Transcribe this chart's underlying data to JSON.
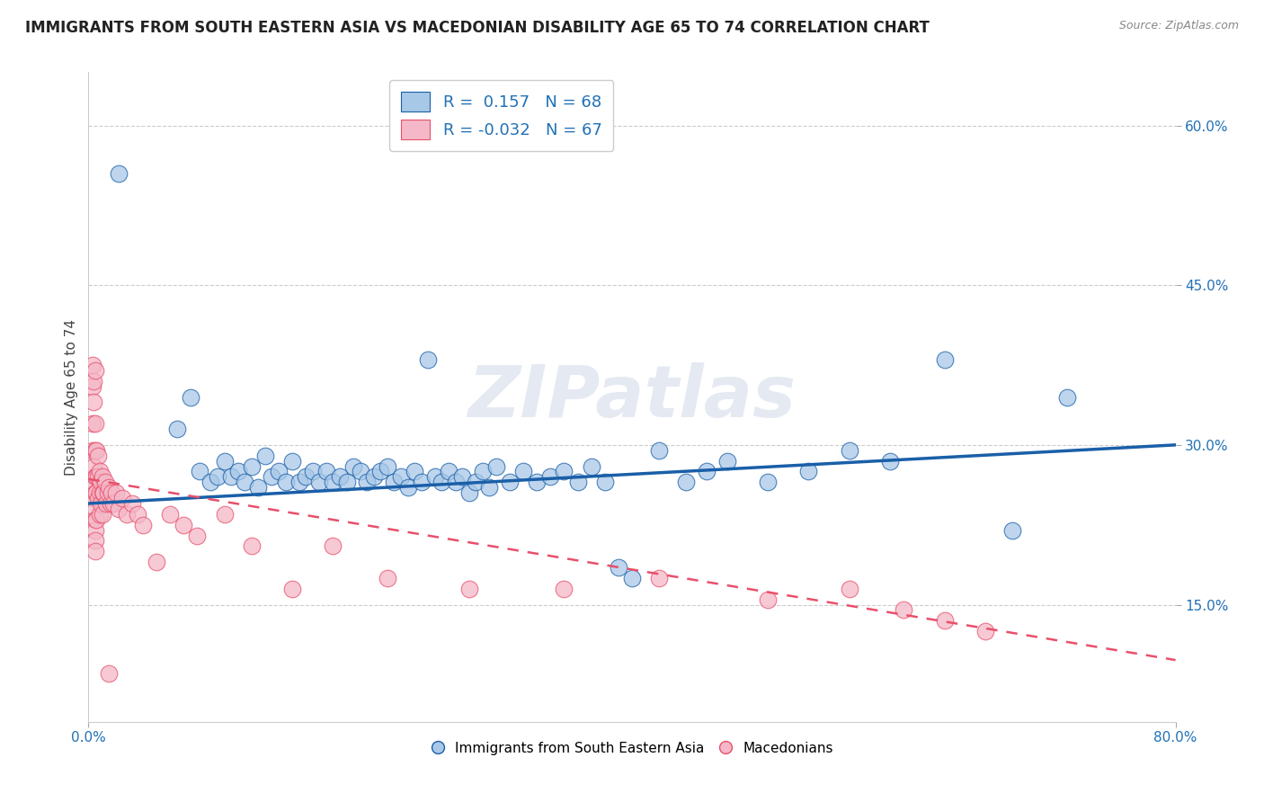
{
  "title": "IMMIGRANTS FROM SOUTH EASTERN ASIA VS MACEDONIAN DISABILITY AGE 65 TO 74 CORRELATION CHART",
  "source": "Source: ZipAtlas.com",
  "ylabel": "Disability Age 65 to 74",
  "xlim": [
    0.0,
    0.8
  ],
  "ylim": [
    0.04,
    0.65
  ],
  "yticks": [
    0.15,
    0.3,
    0.45,
    0.6
  ],
  "yticklabels": [
    "15.0%",
    "30.0%",
    "45.0%",
    "60.0%"
  ],
  "title_fontsize": 12,
  "axis_label_fontsize": 11,
  "tick_fontsize": 11,
  "legend_R1": " 0.157",
  "legend_N1": "68",
  "legend_R2": "-0.032",
  "legend_N2": "67",
  "blue_color": "#a8c8e8",
  "pink_color": "#f4b8c8",
  "blue_line_color": "#1a5fa8",
  "pink_line_color": "#e8506a",
  "blue_line_x0": 0.0,
  "blue_line_x1": 0.8,
  "blue_line_y0": 0.245,
  "blue_line_y1": 0.3,
  "pink_line_x0": 0.0,
  "pink_line_x1": 0.8,
  "pink_line_y0": 0.268,
  "pink_line_y1": 0.098,
  "watermark": "ZIPatlas",
  "blue_scatter_x": [
    0.022,
    0.065,
    0.075,
    0.082,
    0.09,
    0.095,
    0.1,
    0.105,
    0.11,
    0.115,
    0.12,
    0.125,
    0.13,
    0.135,
    0.14,
    0.145,
    0.15,
    0.155,
    0.16,
    0.165,
    0.17,
    0.175,
    0.18,
    0.185,
    0.19,
    0.195,
    0.2,
    0.205,
    0.21,
    0.215,
    0.22,
    0.225,
    0.23,
    0.235,
    0.24,
    0.245,
    0.25,
    0.255,
    0.26,
    0.265,
    0.27,
    0.275,
    0.28,
    0.285,
    0.29,
    0.295,
    0.3,
    0.31,
    0.32,
    0.33,
    0.34,
    0.35,
    0.36,
    0.37,
    0.38,
    0.4,
    0.42,
    0.44,
    0.47,
    0.5,
    0.53,
    0.56,
    0.59,
    0.63,
    0.68,
    0.72,
    0.455,
    0.39
  ],
  "blue_scatter_y": [
    0.555,
    0.315,
    0.345,
    0.275,
    0.265,
    0.27,
    0.285,
    0.27,
    0.275,
    0.265,
    0.28,
    0.26,
    0.29,
    0.27,
    0.275,
    0.265,
    0.285,
    0.265,
    0.27,
    0.275,
    0.265,
    0.275,
    0.265,
    0.27,
    0.265,
    0.28,
    0.275,
    0.265,
    0.27,
    0.275,
    0.28,
    0.265,
    0.27,
    0.26,
    0.275,
    0.265,
    0.38,
    0.27,
    0.265,
    0.275,
    0.265,
    0.27,
    0.255,
    0.265,
    0.275,
    0.26,
    0.28,
    0.265,
    0.275,
    0.265,
    0.27,
    0.275,
    0.265,
    0.28,
    0.265,
    0.175,
    0.295,
    0.265,
    0.285,
    0.265,
    0.275,
    0.295,
    0.285,
    0.38,
    0.22,
    0.345,
    0.275,
    0.185
  ],
  "pink_scatter_x": [
    0.003,
    0.003,
    0.003,
    0.003,
    0.004,
    0.004,
    0.004,
    0.004,
    0.004,
    0.005,
    0.005,
    0.005,
    0.005,
    0.005,
    0.005,
    0.005,
    0.005,
    0.005,
    0.005,
    0.006,
    0.006,
    0.006,
    0.006,
    0.007,
    0.007,
    0.007,
    0.008,
    0.008,
    0.008,
    0.009,
    0.009,
    0.01,
    0.01,
    0.01,
    0.011,
    0.012,
    0.013,
    0.014,
    0.015,
    0.016,
    0.017,
    0.018,
    0.02,
    0.022,
    0.025,
    0.028,
    0.032,
    0.036,
    0.04,
    0.05,
    0.06,
    0.07,
    0.08,
    0.1,
    0.12,
    0.15,
    0.18,
    0.22,
    0.28,
    0.35,
    0.42,
    0.5,
    0.56,
    0.6,
    0.63,
    0.66,
    0.015
  ],
  "pink_scatter_y": [
    0.375,
    0.355,
    0.32,
    0.295,
    0.36,
    0.34,
    0.28,
    0.265,
    0.25,
    0.37,
    0.32,
    0.295,
    0.27,
    0.255,
    0.24,
    0.23,
    0.22,
    0.21,
    0.2,
    0.295,
    0.27,
    0.255,
    0.23,
    0.29,
    0.27,
    0.25,
    0.275,
    0.255,
    0.235,
    0.265,
    0.245,
    0.27,
    0.255,
    0.235,
    0.255,
    0.265,
    0.245,
    0.255,
    0.26,
    0.245,
    0.255,
    0.245,
    0.255,
    0.24,
    0.25,
    0.235,
    0.245,
    0.235,
    0.225,
    0.19,
    0.235,
    0.225,
    0.215,
    0.235,
    0.205,
    0.165,
    0.205,
    0.175,
    0.165,
    0.165,
    0.175,
    0.155,
    0.165,
    0.145,
    0.135,
    0.125,
    0.085
  ]
}
